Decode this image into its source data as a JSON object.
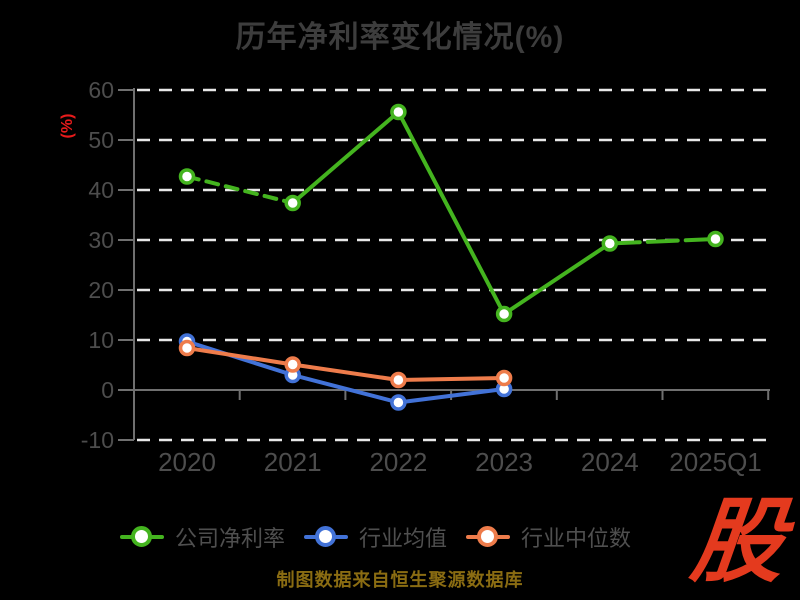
{
  "title": "历年净利率变化情况(%)",
  "y_axis_label": "(%)",
  "footer": {
    "text": "制图数据来自恒生聚源数据库"
  },
  "logo": {
    "text": "股",
    "color": "#e43a1e"
  },
  "colors": {
    "background": "#000000",
    "title_text": "#3d3d3d",
    "axis_line": "#707070",
    "tick_label": "#4d4d4d",
    "gridline": "#e8e8e8",
    "y_axis_label_red": "#e81b1b",
    "footer_gold": "#8a6c12"
  },
  "chart_data": {
    "type": "line",
    "title": "历年净利率变化情况(%)",
    "ylabel": "(%)",
    "categories": [
      "2020",
      "2021",
      "2022",
      "2023",
      "2024",
      "2025Q1"
    ],
    "series": [
      {
        "name": "公司净利率",
        "color": "#44b41f",
        "values": [
          42.7,
          37.4,
          55.6,
          15.2,
          29.3,
          30.2
        ],
        "dashed_segments": [
          0,
          4
        ]
      },
      {
        "name": "行业均值",
        "color": "#4272d7",
        "values": [
          9.7,
          3.0,
          -2.5,
          0.2
        ],
        "dashed_segments": []
      },
      {
        "name": "行业中位数",
        "color": "#ee7c4b",
        "values": [
          8.4,
          5.1,
          2.0,
          2.4
        ],
        "dashed_segments": []
      }
    ],
    "ylim": [
      -10,
      60
    ],
    "y_ticks": [
      60,
      50,
      40,
      30,
      20,
      10,
      0,
      -10
    ],
    "grid": "horizontal dashed white, solid axis line at 0",
    "legend_position": "bottom",
    "marker": "white-filled circle with colored ring"
  }
}
